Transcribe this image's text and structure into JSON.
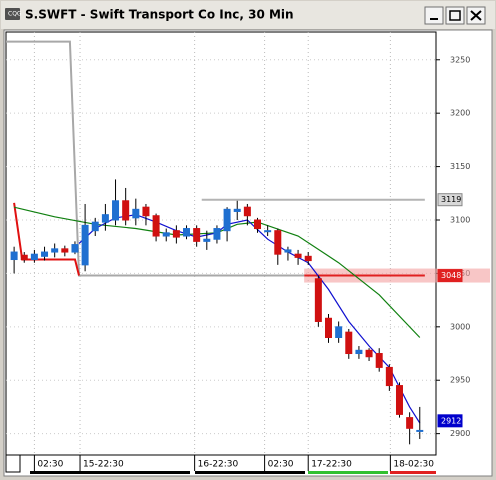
{
  "chart_data": {
    "type": "candlestick",
    "title": "S.SWFT - Swift Transport Co Inc, 30 Min",
    "up_color": "#1f6fd0",
    "down_color": "#d01010",
    "candles": {
      "open": [
        3063,
        3067,
        3063,
        3066,
        3070,
        3073,
        3070,
        3058,
        3090,
        3098,
        3100,
        3118,
        3102,
        3112,
        3104,
        3085,
        3090,
        3085,
        3092,
        3080,
        3082,
        3090,
        3108,
        3112,
        3100,
        3090,
        3090,
        3070,
        3068,
        3066,
        3045,
        3008,
        2990,
        2995,
        2975,
        2978,
        2975,
        2962,
        2945,
        2915,
        2903
      ],
      "high": [
        3075,
        3070,
        3072,
        3075,
        3078,
        3076,
        3080,
        3115,
        3102,
        3115,
        3138,
        3130,
        3120,
        3115,
        3106,
        3092,
        3095,
        3095,
        3095,
        3090,
        3095,
        3112,
        3118,
        3115,
        3102,
        3095,
        3092,
        3075,
        3072,
        3070,
        3048,
        3012,
        3005,
        2998,
        2982,
        2980,
        2980,
        2965,
        2948,
        2920,
        2925
      ],
      "low": [
        3050,
        3060,
        3060,
        3062,
        3065,
        3066,
        3068,
        3052,
        3085,
        3090,
        3095,
        3095,
        3095,
        3095,
        3080,
        3080,
        3078,
        3082,
        3075,
        3072,
        3078,
        3080,
        3100,
        3095,
        3088,
        3085,
        3058,
        3062,
        3058,
        3058,
        3000,
        2985,
        2985,
        2970,
        2970,
        2968,
        2958,
        2940,
        2915,
        2890,
        2895
      ],
      "close": [
        3070,
        3063,
        3068,
        3070,
        3073,
        3070,
        3077,
        3095,
        3098,
        3105,
        3118,
        3100,
        3110,
        3104,
        3085,
        3088,
        3084,
        3092,
        3080,
        3082,
        3092,
        3110,
        3110,
        3104,
        3092,
        3090,
        3068,
        3072,
        3065,
        3062,
        3005,
        2990,
        3000,
        2975,
        2978,
        2972,
        2962,
        2945,
        2918,
        2905,
        2903
      ]
    },
    "lines": [
      {
        "color": "#a8a8a8",
        "x": [
          -0.8,
          5.5,
          6.4,
          28.6
        ],
        "values": [
          3267,
          3267,
          3048,
          3048
        ]
      },
      {
        "color": "#e01010",
        "x": [
          0,
          0.8,
          6,
          6.4
        ],
        "values": [
          3116,
          3063,
          3063,
          3048
        ]
      },
      {
        "color": "#108010",
        "x": [
          0,
          4,
          8,
          12,
          16,
          20,
          22,
          24,
          28,
          32,
          36,
          40
        ],
        "values": [
          3112,
          3103,
          3096,
          3092,
          3086,
          3088,
          3096,
          3098,
          3085,
          3060,
          3030,
          2990
        ]
      },
      {
        "color": "#1010d0",
        "x": [
          6.4,
          8,
          10,
          12,
          14,
          16,
          18,
          20,
          21,
          23,
          25,
          27,
          29,
          31,
          33,
          35,
          37,
          39,
          40
        ],
        "values": [
          3078,
          3092,
          3102,
          3105,
          3098,
          3090,
          3084,
          3088,
          3096,
          3100,
          3082,
          3070,
          3060,
          3035,
          3005,
          2982,
          2962,
          2925,
          2910
        ]
      }
    ],
    "markers": [
      {
        "value": 3119,
        "color": "#b4b4b4",
        "x": [
          18.5,
          40.5
        ]
      },
      {
        "value": 3048,
        "color": "#e02020",
        "x": [
          28.6,
          40.5
        ]
      },
      {
        "value": 2912,
        "color": "#0000cc"
      }
    ],
    "xlim": [
      -0.8,
      41.6
    ],
    "ylim": [
      2880,
      3276
    ],
    "yticks": [
      2900,
      2950,
      3000,
      3050,
      3100,
      3150,
      3200,
      3250
    ],
    "xticks": [
      {
        "value": 2,
        "label": "02:30"
      },
      {
        "value": 6.5,
        "label": "15-22:30"
      },
      {
        "value": 17.8,
        "label": "16-22:30"
      },
      {
        "value": 24.7,
        "label": "02:30"
      },
      {
        "value": 29,
        "label": "17-22:30"
      },
      {
        "value": 37.1,
        "label": "18-02:30"
      }
    ]
  }
}
